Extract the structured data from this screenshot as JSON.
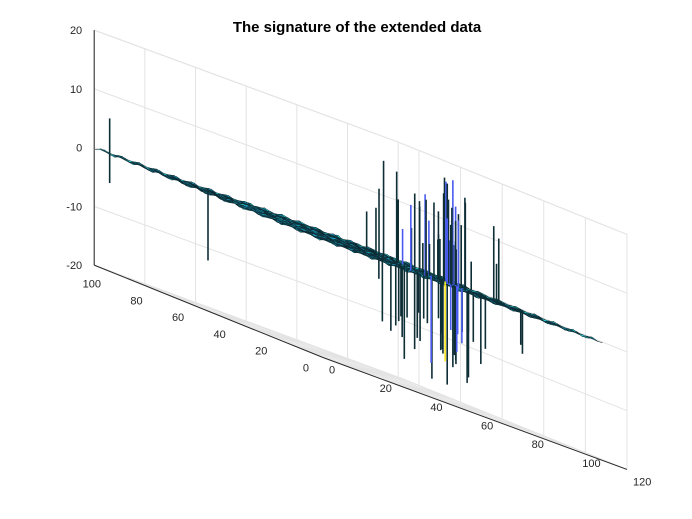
{
  "chart_data": {
    "type": "surface",
    "title": "The signature of the extended data",
    "xlabel": "",
    "ylabel": "",
    "zlabel": "",
    "x_ticks": [
      "0",
      "20",
      "40",
      "60",
      "80",
      "100",
      "120"
    ],
    "y_ticks": [
      "0",
      "20",
      "40",
      "60",
      "80",
      "100"
    ],
    "z_ticks": [
      "-20",
      "-10",
      "0",
      "10",
      "20"
    ],
    "xlim": [
      0,
      120
    ],
    "ylim": [
      0,
      110
    ],
    "zlim": [
      -20,
      20
    ],
    "grid": true,
    "colormap": "parula",
    "colors": {
      "surface_primary": "#1fa9c9",
      "surface_edge": "#0b1d22",
      "spike_high": "#f9e51c",
      "spike_mid": "#4a5cf0",
      "grid": "#e3e3e3",
      "axis": "#262626"
    }
  }
}
